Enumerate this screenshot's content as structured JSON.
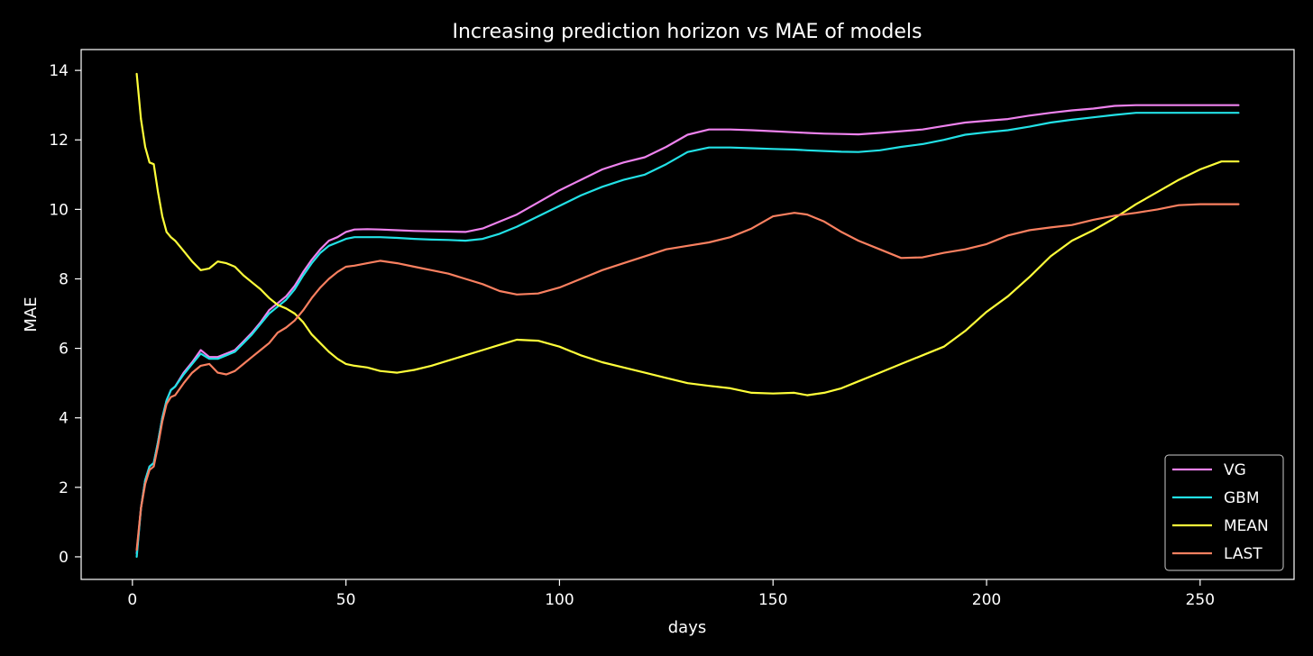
{
  "chart_data": {
    "type": "line",
    "title": "Increasing prediction horizon vs MAE of models",
    "xlabel": "days",
    "ylabel": "MAE",
    "xlim": [
      -12,
      272
    ],
    "ylim": [
      -0.65,
      14.6
    ],
    "xticks": [
      0,
      50,
      100,
      150,
      200,
      250
    ],
    "yticks": [
      0,
      2,
      4,
      6,
      8,
      10,
      12,
      14
    ],
    "grid": false,
    "legend_position": "lower-right",
    "background": "#000000",
    "foreground": "#ffffff",
    "series": [
      {
        "name": "VG",
        "color": "#ee82ee",
        "x": [
          1,
          2,
          3,
          4,
          5,
          6,
          7,
          8,
          9,
          10,
          12,
          14,
          16,
          18,
          20,
          22,
          24,
          26,
          28,
          30,
          32,
          34,
          36,
          38,
          40,
          42,
          44,
          46,
          48,
          50,
          52,
          55,
          58,
          62,
          66,
          70,
          74,
          78,
          82,
          86,
          90,
          95,
          100,
          105,
          110,
          115,
          120,
          125,
          130,
          135,
          140,
          145,
          150,
          155,
          158,
          162,
          166,
          170,
          175,
          180,
          185,
          190,
          195,
          200,
          205,
          210,
          215,
          220,
          225,
          230,
          235,
          240,
          245,
          250,
          255,
          259
        ],
        "values": [
          0.1,
          1.4,
          2.2,
          2.6,
          2.7,
          3.3,
          4.0,
          4.5,
          4.8,
          4.9,
          5.3,
          5.6,
          5.95,
          5.75,
          5.75,
          5.85,
          5.95,
          6.2,
          6.45,
          6.75,
          7.1,
          7.3,
          7.5,
          7.8,
          8.2,
          8.55,
          8.85,
          9.1,
          9.2,
          9.35,
          9.42,
          9.43,
          9.42,
          9.4,
          9.38,
          9.37,
          9.36,
          9.35,
          9.45,
          9.65,
          9.85,
          10.2,
          10.55,
          10.85,
          11.15,
          11.35,
          11.5,
          11.8,
          12.15,
          12.3,
          12.3,
          12.28,
          12.25,
          12.22,
          12.2,
          12.18,
          12.17,
          12.16,
          12.2,
          12.25,
          12.3,
          12.4,
          12.5,
          12.55,
          12.6,
          12.7,
          12.78,
          12.85,
          12.9,
          12.98,
          13.0,
          13.0,
          13.0,
          13.0,
          13.0,
          13.0
        ]
      },
      {
        "name": "GBM",
        "color": "#22e1e6",
        "x": [
          1,
          2,
          3,
          4,
          5,
          6,
          7,
          8,
          9,
          10,
          12,
          14,
          16,
          18,
          20,
          22,
          24,
          26,
          28,
          30,
          32,
          34,
          36,
          38,
          40,
          42,
          44,
          46,
          48,
          50,
          52,
          55,
          58,
          62,
          66,
          70,
          74,
          78,
          82,
          86,
          90,
          95,
          100,
          105,
          110,
          115,
          120,
          125,
          130,
          135,
          140,
          145,
          150,
          155,
          158,
          162,
          166,
          170,
          175,
          180,
          185,
          190,
          195,
          200,
          205,
          210,
          215,
          220,
          225,
          230,
          235,
          240,
          245,
          250,
          255,
          259
        ],
        "values": [
          0.0,
          1.4,
          2.2,
          2.6,
          2.7,
          3.3,
          4.0,
          4.5,
          4.8,
          4.9,
          5.25,
          5.55,
          5.85,
          5.7,
          5.7,
          5.8,
          5.9,
          6.15,
          6.4,
          6.7,
          7.0,
          7.2,
          7.4,
          7.7,
          8.1,
          8.45,
          8.75,
          8.95,
          9.05,
          9.15,
          9.2,
          9.2,
          9.2,
          9.18,
          9.15,
          9.13,
          9.12,
          9.1,
          9.15,
          9.3,
          9.5,
          9.8,
          10.1,
          10.4,
          10.65,
          10.85,
          11.0,
          11.3,
          11.65,
          11.78,
          11.78,
          11.76,
          11.74,
          11.72,
          11.7,
          11.68,
          11.66,
          11.65,
          11.7,
          11.8,
          11.88,
          12.0,
          12.15,
          12.22,
          12.28,
          12.38,
          12.5,
          12.58,
          12.65,
          12.72,
          12.78,
          12.78,
          12.78,
          12.78,
          12.78,
          12.78
        ]
      },
      {
        "name": "MEAN",
        "color": "#ffff3a",
        "x": [
          1,
          2,
          3,
          4,
          5,
          6,
          7,
          8,
          9,
          10,
          12,
          14,
          16,
          18,
          20,
          22,
          24,
          26,
          28,
          30,
          32,
          34,
          36,
          38,
          40,
          42,
          44,
          46,
          48,
          50,
          52,
          55,
          58,
          62,
          66,
          70,
          74,
          78,
          82,
          86,
          90,
          95,
          100,
          105,
          110,
          115,
          120,
          125,
          130,
          135,
          140,
          145,
          150,
          155,
          158,
          162,
          166,
          170,
          175,
          180,
          185,
          190,
          195,
          200,
          205,
          210,
          215,
          220,
          225,
          230,
          235,
          240,
          245,
          250,
          255,
          259
        ],
        "values": [
          13.9,
          12.6,
          11.8,
          11.35,
          11.3,
          10.5,
          9.8,
          9.35,
          9.2,
          9.1,
          8.8,
          8.5,
          8.25,
          8.3,
          8.5,
          8.45,
          8.35,
          8.1,
          7.9,
          7.7,
          7.45,
          7.25,
          7.15,
          7.0,
          6.75,
          6.4,
          6.15,
          5.9,
          5.7,
          5.55,
          5.5,
          5.45,
          5.35,
          5.3,
          5.38,
          5.5,
          5.65,
          5.8,
          5.95,
          6.1,
          6.25,
          6.22,
          6.05,
          5.8,
          5.6,
          5.45,
          5.3,
          5.15,
          5.0,
          4.92,
          4.85,
          4.72,
          4.7,
          4.72,
          4.65,
          4.72,
          4.85,
          5.05,
          5.3,
          5.55,
          5.8,
          6.05,
          6.5,
          7.05,
          7.5,
          8.05,
          8.65,
          9.1,
          9.4,
          9.75,
          10.15,
          10.5,
          10.85,
          11.15,
          11.38,
          11.38
        ]
      },
      {
        "name": "LAST",
        "color": "#fa8060",
        "x": [
          1,
          2,
          3,
          4,
          5,
          6,
          7,
          8,
          9,
          10,
          12,
          14,
          16,
          18,
          20,
          22,
          24,
          26,
          28,
          30,
          32,
          34,
          36,
          38,
          40,
          42,
          44,
          46,
          48,
          50,
          52,
          55,
          58,
          62,
          66,
          70,
          74,
          78,
          82,
          86,
          90,
          95,
          100,
          105,
          110,
          115,
          120,
          125,
          130,
          135,
          140,
          145,
          150,
          155,
          158,
          162,
          166,
          170,
          175,
          180,
          185,
          190,
          195,
          200,
          205,
          210,
          215,
          220,
          225,
          230,
          235,
          240,
          245,
          250,
          255,
          259
        ],
        "values": [
          0.2,
          1.4,
          2.1,
          2.5,
          2.6,
          3.2,
          3.9,
          4.4,
          4.6,
          4.65,
          5.0,
          5.3,
          5.5,
          5.55,
          5.3,
          5.25,
          5.35,
          5.55,
          5.75,
          5.95,
          6.15,
          6.45,
          6.6,
          6.8,
          7.1,
          7.45,
          7.75,
          8.0,
          8.2,
          8.35,
          8.38,
          8.45,
          8.52,
          8.45,
          8.35,
          8.25,
          8.15,
          8.0,
          7.85,
          7.65,
          7.55,
          7.58,
          7.75,
          8.0,
          8.25,
          8.45,
          8.65,
          8.85,
          8.95,
          9.05,
          9.2,
          9.45,
          9.8,
          9.9,
          9.85,
          9.65,
          9.35,
          9.1,
          8.85,
          8.6,
          8.62,
          8.75,
          8.85,
          9.0,
          9.25,
          9.4,
          9.48,
          9.55,
          9.7,
          9.82,
          9.9,
          10.0,
          10.12,
          10.15,
          10.15,
          10.15
        ]
      }
    ]
  }
}
